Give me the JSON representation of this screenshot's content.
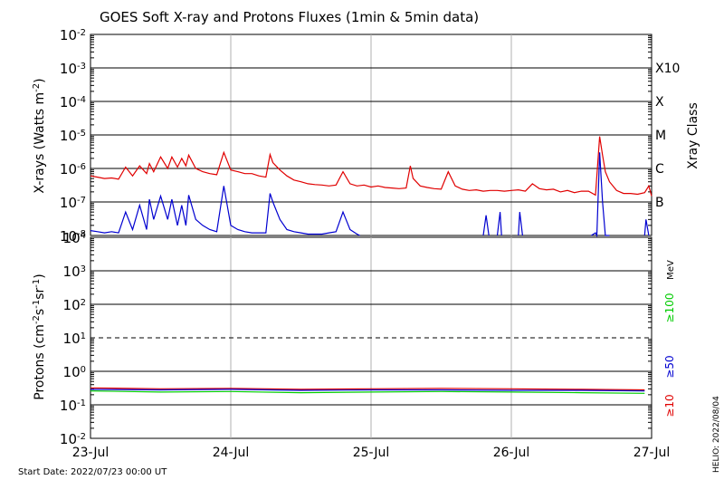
{
  "title": "GOES Soft X-ray and Protons Fluxes   (1min & 5min data)",
  "start_date": "Start Date: 2022/07/23 00:00 UT",
  "credit": "HELIO: 2022/08/04",
  "colors": {
    "red": "#e00000",
    "blue": "#0000d0",
    "green": "#00cc00",
    "grid": "#b0b0b0",
    "axis": "#000000"
  },
  "chart_data": [
    {
      "type": "line",
      "panel": "xray",
      "title": "GOES Soft X-ray and Protons Fluxes   (1min & 5min data)",
      "xlabel": "",
      "ylabel": "X-rays (Watts m-2)",
      "ylabel_parts": {
        "base": "X-rays (Watts m",
        "sup": "-2",
        "close": ")"
      },
      "yscale": "log",
      "ylim": [
        1e-08,
        0.01
      ],
      "xlim": [
        "2022-07-23",
        "2022-07-27"
      ],
      "x_ticks": [
        "23-Jul",
        "24-Jul",
        "25-Jul",
        "26-Jul",
        "27-Jul"
      ],
      "y_ticks": [
        {
          "value": 0.01,
          "exp": "-2"
        },
        {
          "value": 0.001,
          "exp": "-3"
        },
        {
          "value": 0.0001,
          "exp": "-4"
        },
        {
          "value": 1e-05,
          "exp": "-5"
        },
        {
          "value": 1e-06,
          "exp": "-6"
        },
        {
          "value": 1e-07,
          "exp": "-7"
        },
        {
          "value": 1e-08,
          "exp": "-8"
        }
      ],
      "right_axis": {
        "label": "Xray Class",
        "classes": [
          {
            "label": "X10",
            "value": 0.001
          },
          {
            "label": "X",
            "value": 0.0001
          },
          {
            "label": "M",
            "value": 1e-05
          },
          {
            "label": "C",
            "value": 1e-06
          },
          {
            "label": "B",
            "value": 1e-07
          }
        ]
      },
      "series": [
        {
          "color": "#e00000",
          "x": [
            0,
            0.05,
            0.1,
            0.15,
            0.2,
            0.25,
            0.3,
            0.35,
            0.4,
            0.42,
            0.45,
            0.5,
            0.55,
            0.58,
            0.62,
            0.65,
            0.68,
            0.7,
            0.75,
            0.8,
            0.85,
            0.9,
            0.95,
            1.0,
            1.05,
            1.1,
            1.15,
            1.2,
            1.25,
            1.28,
            1.3,
            1.35,
            1.4,
            1.45,
            1.5,
            1.55,
            1.6,
            1.65,
            1.7,
            1.75,
            1.8,
            1.85,
            1.9,
            1.95,
            2.0,
            2.05,
            2.1,
            2.15,
            2.2,
            2.25,
            2.28,
            2.3,
            2.35,
            2.4,
            2.45,
            2.5,
            2.55,
            2.6,
            2.65,
            2.7,
            2.75,
            2.8,
            2.85,
            2.9,
            2.95,
            3.0,
            3.05,
            3.1,
            3.15,
            3.2,
            3.25,
            3.3,
            3.35,
            3.4,
            3.45,
            3.5,
            3.55,
            3.6,
            3.63,
            3.65,
            3.67,
            3.7,
            3.75,
            3.8,
            3.85,
            3.9,
            3.95,
            3.98,
            4.0
          ],
          "y": [
            6e-07,
            5.5e-07,
            5e-07,
            5.2e-07,
            4.8e-07,
            1.1e-06,
            6e-07,
            1.2e-06,
            7e-07,
            1.4e-06,
            8e-07,
            2.2e-06,
            1e-06,
            2.2e-06,
            1.1e-06,
            2e-06,
            1.2e-06,
            2.5e-06,
            1e-06,
            8e-07,
            7e-07,
            6.5e-07,
            3e-06,
            9e-07,
            8e-07,
            7e-07,
            7e-07,
            6e-07,
            5.5e-07,
            2.6e-06,
            1.5e-06,
            9e-07,
            6e-07,
            4.5e-07,
            4e-07,
            3.5e-07,
            3.3e-07,
            3.2e-07,
            3e-07,
            3.2e-07,
            8e-07,
            3.5e-07,
            3e-07,
            3.2e-07,
            2.8e-07,
            3e-07,
            2.7e-07,
            2.6e-07,
            2.5e-07,
            2.6e-07,
            1.2e-06,
            5e-07,
            3e-07,
            2.7e-07,
            2.5e-07,
            2.4e-07,
            8e-07,
            3e-07,
            2.4e-07,
            2.2e-07,
            2.3e-07,
            2.1e-07,
            2.2e-07,
            2.2e-07,
            2.1e-07,
            2.2e-07,
            2.3e-07,
            2.1e-07,
            3.5e-07,
            2.5e-07,
            2.3e-07,
            2.4e-07,
            2e-07,
            2.2e-07,
            1.9e-07,
            2.1e-07,
            2.1e-07,
            1.6e-07,
            9e-06,
            2.5e-06,
            8e-07,
            4e-07,
            2.2e-07,
            1.8e-07,
            1.8e-07,
            1.7e-07,
            1.9e-07,
            3e-07,
            1.5e-07
          ]
        },
        {
          "color": "#0000d0",
          "x": [
            0,
            0.05,
            0.1,
            0.15,
            0.2,
            0.25,
            0.3,
            0.35,
            0.4,
            0.42,
            0.45,
            0.5,
            0.55,
            0.58,
            0.62,
            0.65,
            0.68,
            0.7,
            0.75,
            0.8,
            0.85,
            0.9,
            0.95,
            1.0,
            1.05,
            1.1,
            1.15,
            1.2,
            1.25,
            1.28,
            1.3,
            1.35,
            1.4,
            1.45,
            1.5,
            1.55,
            1.6,
            1.65,
            1.7,
            1.75,
            1.8,
            1.85,
            1.9,
            1.92,
            null,
            2.8,
            2.82,
            2.84,
            null,
            2.9,
            2.92,
            2.93,
            null,
            3.05,
            3.06,
            3.08,
            null,
            3.57,
            3.6,
            3.61,
            3.63,
            3.65,
            3.67,
            3.7,
            null,
            3.95,
            3.96,
            3.98
          ],
          "y": [
            1.4e-08,
            1.3e-08,
            1.2e-08,
            1.3e-08,
            1.2e-08,
            5e-08,
            1.5e-08,
            8e-08,
            1.5e-08,
            1.2e-07,
            3e-08,
            1.5e-07,
            3e-08,
            1.2e-07,
            2e-08,
            8e-08,
            2e-08,
            1.6e-07,
            3e-08,
            2e-08,
            1.5e-08,
            1.3e-08,
            3e-07,
            2e-08,
            1.5e-08,
            1.3e-08,
            1.2e-08,
            1.2e-08,
            1.2e-08,
            1.8e-07,
            1e-07,
            3e-08,
            1.5e-08,
            1.3e-08,
            1.2e-08,
            1.1e-08,
            1.1e-08,
            1.1e-08,
            1.2e-08,
            1.3e-08,
            5e-08,
            1.5e-08,
            1.1e-08,
            1e-08,
            null,
            1e-08,
            4e-08,
            1e-08,
            null,
            1e-08,
            5e-08,
            1e-08,
            null,
            1e-08,
            5e-08,
            1e-08,
            null,
            1e-08,
            1.2e-08,
            1e-08,
            3e-06,
            1e-07,
            1e-08,
            1e-08,
            null,
            1e-08,
            3e-08,
            1e-08
          ]
        }
      ]
    },
    {
      "type": "line",
      "panel": "protons",
      "xlabel": "",
      "ylabel": "Protons (cm-2s-1sr-1)",
      "ylabel_parts": {
        "a": "Protons (cm",
        "s1": "-2",
        "b": "s",
        "s2": "-1",
        "c": "sr",
        "s3": "-1",
        "d": ")"
      },
      "yscale": "log",
      "ylim": [
        0.01,
        10000
      ],
      "xlim": [
        "2022-07-23",
        "2022-07-27"
      ],
      "x_ticks": [
        "23-Jul",
        "24-Jul",
        "25-Jul",
        "26-Jul",
        "27-Jul"
      ],
      "y_ticks": [
        {
          "value": 10000,
          "exp": "4"
        },
        {
          "value": 1000,
          "exp": "3"
        },
        {
          "value": 100,
          "exp": "2"
        },
        {
          "value": 10,
          "exp": "1"
        },
        {
          "value": 1,
          "exp": "0"
        },
        {
          "value": 0.1,
          "exp": "-1"
        },
        {
          "value": 0.01,
          "exp": "-2"
        }
      ],
      "dashed_level": 10,
      "right_axis": {
        "unit": "MeV",
        "energies": [
          {
            "label": "≥100",
            "color": "#00cc00"
          },
          {
            "label": "≥50",
            "color": "#0000d0"
          },
          {
            "label": "≥10",
            "color": "#e00000"
          }
        ]
      },
      "series": [
        {
          "name": "≥10",
          "color": "#e00000",
          "x": [
            0,
            0.5,
            1,
            1.5,
            2,
            2.5,
            3,
            3.5,
            3.95
          ],
          "y": [
            0.32,
            0.3,
            0.31,
            0.29,
            0.3,
            0.31,
            0.3,
            0.29,
            0.28
          ]
        },
        {
          "name": "≥50",
          "color": "#0000d0",
          "x": [
            0,
            0.5,
            1,
            1.5,
            2,
            2.5,
            3,
            3.5,
            3.95
          ],
          "y": [
            0.29,
            0.28,
            0.29,
            0.27,
            0.28,
            0.28,
            0.27,
            0.27,
            0.26
          ]
        },
        {
          "name": "≥100",
          "color": "#00cc00",
          "x": [
            0,
            0.5,
            1,
            1.5,
            2,
            2.5,
            3,
            3.5,
            3.95
          ],
          "y": [
            0.26,
            0.24,
            0.25,
            0.23,
            0.24,
            0.25,
            0.24,
            0.23,
            0.22
          ]
        }
      ]
    }
  ],
  "x_axis_days": [
    0,
    1,
    2,
    3,
    4
  ]
}
